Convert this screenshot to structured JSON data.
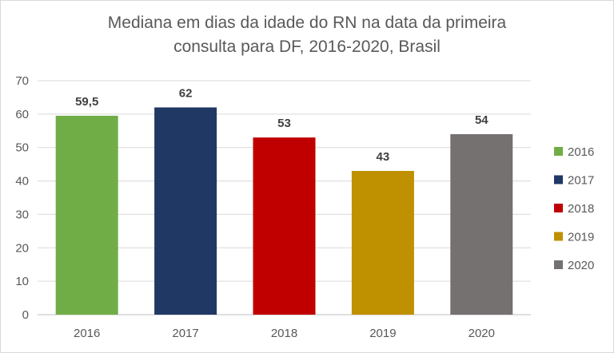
{
  "chart_data": {
    "type": "bar",
    "title_lines": [
      "Mediana em dias da idade do RN na data da primeira",
      "consulta para DF, 2016-2020, Brasil"
    ],
    "categories": [
      "2016",
      "2017",
      "2018",
      "2019",
      "2020"
    ],
    "values": [
      59.5,
      62,
      53,
      43,
      54
    ],
    "data_labels": [
      "59,5",
      "62",
      "53",
      "43",
      "54"
    ],
    "colors": [
      "#70ad47",
      "#203864",
      "#c00000",
      "#bf9000",
      "#767171"
    ],
    "legend": [
      "2016",
      "2017",
      "2018",
      "2019",
      "2020"
    ],
    "legend_position": "right",
    "y_ticks": [
      "0",
      "10",
      "20",
      "30",
      "40",
      "50",
      "60",
      "70"
    ],
    "ylim": [
      0,
      70
    ],
    "grid": true,
    "xlabel": "",
    "ylabel": ""
  }
}
